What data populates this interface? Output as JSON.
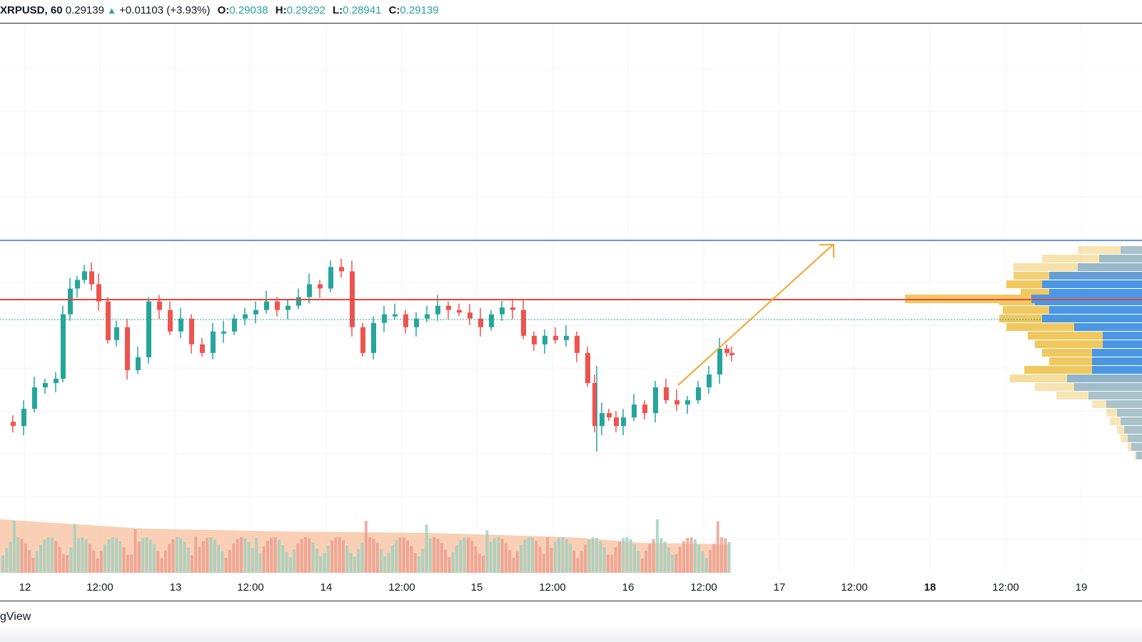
{
  "legend": {
    "symbol": "XRPUSD, 60",
    "last": "0.29139",
    "change_arrow": "▲",
    "change": "+0.01103 (+3.93%)",
    "o_label": "O:",
    "o_value": "0.29038",
    "h_label": "H:",
    "h_value": "0.29292",
    "l_label": "L:",
    "l_value": "0.28941",
    "c_label": "C:",
    "c_value": "0.29139"
  },
  "time_axis": {
    "ticks": [
      {
        "label": "12",
        "bold": false
      },
      {
        "label": "12:00",
        "bold": false
      },
      {
        "label": "13",
        "bold": false
      },
      {
        "label": "12:00",
        "bold": false
      },
      {
        "label": "14",
        "bold": false
      },
      {
        "label": "12:00",
        "bold": false
      },
      {
        "label": "15",
        "bold": false
      },
      {
        "label": "12:00",
        "bold": false
      },
      {
        "label": "16",
        "bold": false
      },
      {
        "label": "12:00",
        "bold": false
      },
      {
        "label": "17",
        "bold": false
      },
      {
        "label": "12:00",
        "bold": false
      },
      {
        "label": "18",
        "bold": true
      },
      {
        "label": "12:00",
        "bold": false
      },
      {
        "label": "19",
        "bold": false
      }
    ]
  },
  "footer": {
    "brand": "gView"
  },
  "colors": {
    "up": "#26a69a",
    "down": "#ef5350",
    "resistance_line": "#6f95e0",
    "support_line": "#e8453c",
    "trend_arrow": "#f4a62a",
    "profile_buy": "#4c97e3",
    "profile_sell": "#f0c860",
    "volume_fill": "#f7c4a2"
  },
  "chart_data": {
    "type": "candlestick",
    "symbol": "XRPUSD",
    "interval": "60",
    "last_price": 0.29139,
    "levels": [
      {
        "price": 0.3046,
        "color": "#6f95e0"
      },
      {
        "price": 0.2963,
        "color": "#e8453c"
      }
    ],
    "current_price_line": 0.2914,
    "trend_arrow": {
      "from": {
        "x": "16 09:00",
        "y": 0.2827
      },
      "to": {
        "x": "17 06:00",
        "y": 0.304
      }
    },
    "grid": true
  }
}
